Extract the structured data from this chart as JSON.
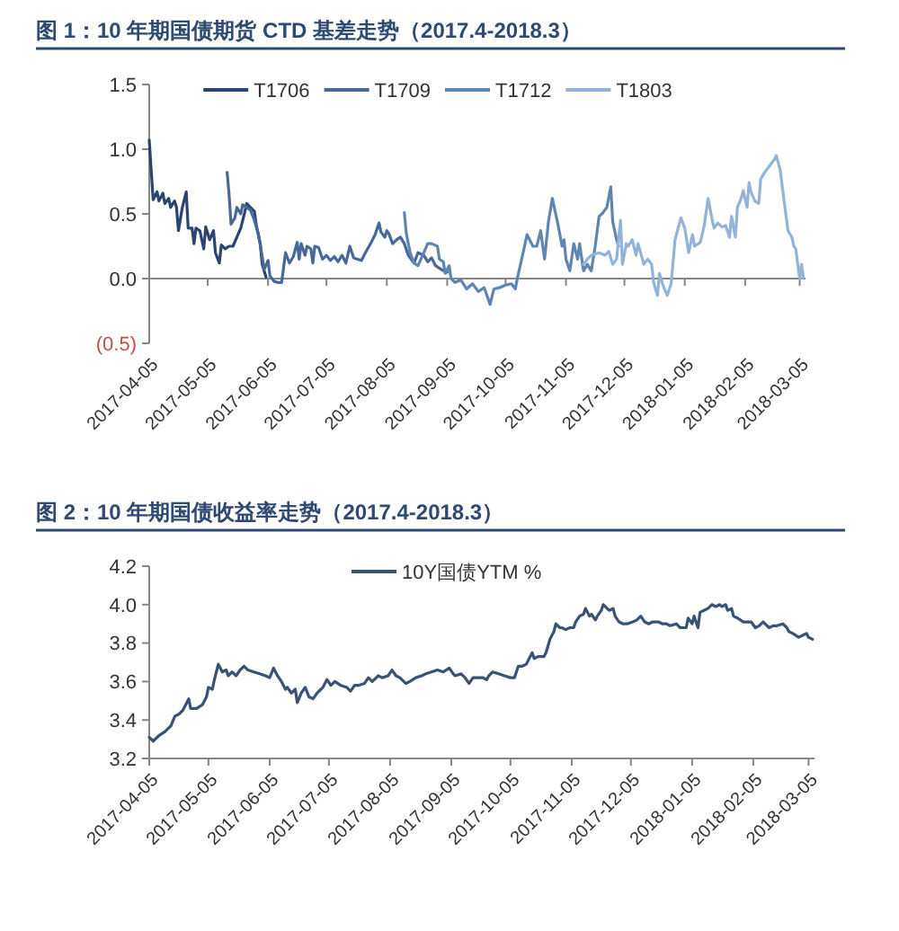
{
  "chart_data": [
    {
      "type": "line",
      "title": "图 1：10 年期国债期货 CTD 基差走势（2017.4-2018.3）",
      "legend": "top",
      "xlim": [
        "2017-04-05",
        "2018-03-08"
      ],
      "xticks": [
        "2017-04-05",
        "2017-05-05",
        "2017-06-05",
        "2017-07-05",
        "2017-08-05",
        "2017-09-05",
        "2017-10-05",
        "2017-11-05",
        "2017-12-05",
        "2018-01-05",
        "2018-02-05",
        "2018-03-05"
      ],
      "ylim": [
        -0.5,
        1.5
      ],
      "yticks": [
        {
          "value": -0.5,
          "label": "(0.5)"
        },
        {
          "value": 0,
          "label": "0.0"
        },
        0.5,
        {
          "value": 1,
          "label": "1.0"
        },
        1.5
      ],
      "series": [
        {
          "name": "T1706",
          "color": "#2b4570",
          "x": [
            "2017-04-05",
            "2017-04-07",
            "2017-04-09",
            "2017-04-10",
            "2017-04-12",
            "2017-04-13",
            "2017-04-15",
            "2017-04-16",
            "2017-04-18",
            "2017-04-19",
            "2017-04-20",
            "2017-04-22",
            "2017-04-24",
            "2017-04-25",
            "2017-04-27",
            "2017-04-28",
            "2017-04-29",
            "2017-05-01",
            "2017-05-03",
            "2017-05-04",
            "2017-05-06",
            "2017-05-08",
            "2017-05-09",
            "2017-05-11",
            "2017-05-12",
            "2017-05-14",
            "2017-05-16",
            "2017-05-18",
            "2017-05-20",
            "2017-05-22",
            "2017-05-24",
            "2017-05-25",
            "2017-05-27",
            "2017-05-29",
            "2017-05-30",
            "2017-06-01",
            "2017-06-02",
            "2017-06-04"
          ],
          "values": [
            1.07,
            0.61,
            0.67,
            0.6,
            0.66,
            0.58,
            0.62,
            0.55,
            0.6,
            0.55,
            0.37,
            0.55,
            0.67,
            0.39,
            0.39,
            0.27,
            0.39,
            0.37,
            0.23,
            0.4,
            0.3,
            0.37,
            0.2,
            0.12,
            0.26,
            0.23,
            0.25,
            0.25,
            0.32,
            0.39,
            0.51,
            0.58,
            0.55,
            0.52,
            0.41,
            0.27,
            0.11,
            0.01
          ]
        },
        {
          "name": "T1709",
          "color": "#46689a",
          "x": [
            "2017-05-15",
            "2017-05-16",
            "2017-05-17",
            "2017-05-19",
            "2017-05-20",
            "2017-05-22",
            "2017-05-23",
            "2017-05-25",
            "2017-05-27",
            "2017-05-29",
            "2017-05-31",
            "2017-06-02",
            "2017-06-03",
            "2017-06-05",
            "2017-06-06",
            "2017-06-08",
            "2017-06-10",
            "2017-06-12",
            "2017-06-14",
            "2017-06-16",
            "2017-06-18",
            "2017-06-20",
            "2017-06-21",
            "2017-06-22",
            "2017-06-24",
            "2017-06-25",
            "2017-06-27",
            "2017-06-28",
            "2017-06-29",
            "2017-07-01",
            "2017-07-03",
            "2017-07-05",
            "2017-07-07",
            "2017-07-09",
            "2017-07-11",
            "2017-07-13",
            "2017-07-15",
            "2017-07-17",
            "2017-07-19",
            "2017-07-21",
            "2017-07-23",
            "2017-07-25",
            "2017-07-28",
            "2017-07-30",
            "2017-08-01",
            "2017-08-02",
            "2017-08-04",
            "2017-08-05",
            "2017-08-06",
            "2017-08-08",
            "2017-08-10",
            "2017-08-12",
            "2017-08-14",
            "2017-08-16",
            "2017-08-19",
            "2017-08-21",
            "2017-08-24",
            "2017-08-26",
            "2017-08-28",
            "2017-08-30",
            "2017-09-02",
            "2017-09-05"
          ],
          "values": [
            0.82,
            0.65,
            0.42,
            0.47,
            0.55,
            0.5,
            0.57,
            0.55,
            0.53,
            0.45,
            0.35,
            0.17,
            0.07,
            0.14,
            0.02,
            -0.02,
            -0.03,
            -0.03,
            0.2,
            0.12,
            0.17,
            0.28,
            0.15,
            0.27,
            0.18,
            0.25,
            0.23,
            0.12,
            0.25,
            0.24,
            0.15,
            0.18,
            0.14,
            0.17,
            0.13,
            0.18,
            0.12,
            0.25,
            0.16,
            0.15,
            0.14,
            0.2,
            0.28,
            0.34,
            0.43,
            0.36,
            0.32,
            0.37,
            0.35,
            0.27,
            0.3,
            0.32,
            0.27,
            0.18,
            0.12,
            0.2,
            0.18,
            0.13,
            0.16,
            0.1,
            0.07,
            0.05
          ]
        },
        {
          "name": "T1712",
          "color": "#5f85b3",
          "x": [
            "2017-08-14",
            "2017-08-15",
            "2017-08-17",
            "2017-08-19",
            "2017-08-21",
            "2017-08-24",
            "2017-08-26",
            "2017-08-28",
            "2017-08-31",
            "2017-09-01",
            "2017-09-03",
            "2017-09-04",
            "2017-09-06",
            "2017-09-07",
            "2017-09-09",
            "2017-09-12",
            "2017-09-15",
            "2017-09-18",
            "2017-09-21",
            "2017-09-24",
            "2017-09-27",
            "2017-09-29",
            "2017-10-02",
            "2017-10-05",
            "2017-10-08",
            "2017-10-10",
            "2017-10-11",
            "2017-10-14",
            "2017-10-16",
            "2017-10-19",
            "2017-10-21",
            "2017-10-23",
            "2017-10-25",
            "2017-10-27",
            "2017-10-29",
            "2017-10-31",
            "2017-11-01",
            "2017-11-03",
            "2017-11-04",
            "2017-11-05",
            "2017-11-07",
            "2017-11-09",
            "2017-11-11",
            "2017-11-12",
            "2017-11-14",
            "2017-11-16",
            "2017-11-18",
            "2017-11-20",
            "2017-11-22",
            "2017-11-24",
            "2017-11-26",
            "2017-11-28",
            "2017-11-29",
            "2017-12-01",
            "2017-12-02"
          ],
          "values": [
            0.51,
            0.35,
            0.2,
            0.12,
            0.1,
            0.2,
            0.27,
            0.27,
            0.25,
            0.15,
            0.13,
            0.04,
            0.1,
            0,
            -0.03,
            -0.01,
            -0.08,
            -0.04,
            -0.1,
            -0.07,
            -0.2,
            -0.08,
            -0.07,
            -0.05,
            -0.04,
            -0.08,
            0,
            0.2,
            0.34,
            0.25,
            0.25,
            0.37,
            0.15,
            0.44,
            0.62,
            0.48,
            0.41,
            0.25,
            0.3,
            0.15,
            0.06,
            0.27,
            0.15,
            0.27,
            0.06,
            0.11,
            0.06,
            0.25,
            0.48,
            0.51,
            0.55,
            0.71,
            0.44,
            0.3,
            0.25
          ]
        },
        {
          "name": "T1803",
          "color": "#93b4d8",
          "x": [
            "2017-11-14",
            "2017-11-16",
            "2017-11-18",
            "2017-11-22",
            "2017-11-25",
            "2017-11-27",
            "2017-11-29",
            "2017-12-01",
            "2017-12-03",
            "2017-12-04",
            "2017-12-06",
            "2017-12-07",
            "2017-12-09",
            "2017-12-11",
            "2017-12-12",
            "2017-12-15",
            "2017-12-17",
            "2017-12-19",
            "2017-12-20",
            "2017-12-22",
            "2017-12-23",
            "2017-12-25",
            "2017-12-27",
            "2017-12-29",
            "2017-12-31",
            "2018-01-03",
            "2018-01-05",
            "2018-01-07",
            "2018-01-09",
            "2018-01-10",
            "2018-01-13",
            "2018-01-15",
            "2018-01-17",
            "2018-01-19",
            "2018-01-20",
            "2018-01-22",
            "2018-01-24",
            "2018-01-26",
            "2018-01-28",
            "2018-01-29",
            "2018-01-31",
            "2018-02-01",
            "2018-02-03",
            "2018-02-04",
            "2018-02-06",
            "2018-02-07",
            "2018-02-08",
            "2018-02-10",
            "2018-02-12",
            "2018-02-13",
            "2018-02-15",
            "2018-02-18",
            "2018-02-20",
            "2018-02-21",
            "2018-02-23",
            "2018-02-25",
            "2018-02-27",
            "2018-03-01",
            "2018-03-02",
            "2018-03-03",
            "2018-03-05",
            "2018-03-06",
            "2018-03-07"
          ],
          "values": [
            0.11,
            0.15,
            0.18,
            0.2,
            0.18,
            0.21,
            0.11,
            0.15,
            0.45,
            0.11,
            0.27,
            0.25,
            0.3,
            0.18,
            0.27,
            0.11,
            0.15,
            0.11,
            -0.03,
            -0.13,
            0.04,
            -0.06,
            -0.13,
            -0.04,
            0.3,
            0.47,
            0.39,
            0.2,
            0.34,
            0.25,
            0.28,
            0.41,
            0.62,
            0.46,
            0.39,
            0.43,
            0.4,
            0.41,
            0.32,
            0.48,
            0.32,
            0.55,
            0.62,
            0.68,
            0.55,
            0.74,
            0.67,
            0.6,
            0.58,
            0.77,
            0.82,
            0.88,
            0.92,
            0.95,
            0.84,
            0.6,
            0.37,
            0.32,
            0.25,
            0.23,
            0,
            0.11,
            0
          ]
        }
      ]
    },
    {
      "type": "line",
      "title": "图 2：10 年期国债收益率走势（2017.4-2018.3）",
      "legend": "top",
      "xlim": [
        "2017-04-05",
        "2018-03-08"
      ],
      "xticks": [
        "2017-04-05",
        "2017-05-05",
        "2017-06-05",
        "2017-07-05",
        "2017-08-05",
        "2017-09-05",
        "2017-10-05",
        "2017-11-05",
        "2017-12-05",
        "2018-01-05",
        "2018-02-05",
        "2018-03-05"
      ],
      "ylim": [
        3.2,
        4.2
      ],
      "yticks": [
        3.2,
        3.4,
        3.6,
        3.8,
        {
          "value": 4,
          "label": "4.0"
        },
        4.2
      ],
      "series": [
        {
          "name": "10Y国债YTM %",
          "color": "#3a5276",
          "x": [
            "2017-04-05",
            "2017-04-07",
            "2017-04-10",
            "2017-04-13",
            "2017-04-16",
            "2017-04-18",
            "2017-04-20",
            "2017-04-22",
            "2017-04-23",
            "2017-04-25",
            "2017-04-26",
            "2017-04-29",
            "2017-05-02",
            "2017-05-04",
            "2017-05-05",
            "2017-05-07",
            "2017-05-08",
            "2017-05-10",
            "2017-05-12",
            "2017-05-14",
            "2017-05-15",
            "2017-05-17",
            "2017-05-19",
            "2017-05-21",
            "2017-05-23",
            "2017-05-25",
            "2017-05-28",
            "2017-05-31",
            "2017-06-03",
            "2017-06-05",
            "2017-06-07",
            "2017-06-09",
            "2017-06-11",
            "2017-06-13",
            "2017-06-14",
            "2017-06-16",
            "2017-06-18",
            "2017-06-19",
            "2017-06-21",
            "2017-06-23",
            "2017-06-25",
            "2017-06-27",
            "2017-06-29",
            "2017-07-02",
            "2017-07-04",
            "2017-07-06",
            "2017-07-08",
            "2017-07-11",
            "2017-07-14",
            "2017-07-16",
            "2017-07-18",
            "2017-07-20",
            "2017-07-23",
            "2017-07-25",
            "2017-07-27",
            "2017-07-30",
            "2017-08-01",
            "2017-08-04",
            "2017-08-06",
            "2017-08-08",
            "2017-08-10",
            "2017-08-13",
            "2017-08-15",
            "2017-08-18",
            "2017-08-21",
            "2017-08-23",
            "2017-08-26",
            "2017-08-29",
            "2017-09-01",
            "2017-09-04",
            "2017-09-06",
            "2017-09-07",
            "2017-09-10",
            "2017-09-12",
            "2017-09-14",
            "2017-09-16",
            "2017-09-18",
            "2017-09-21",
            "2017-09-23",
            "2017-09-24",
            "2017-09-26",
            "2017-09-29",
            "2017-10-02",
            "2017-10-05",
            "2017-10-07",
            "2017-10-09",
            "2017-10-11",
            "2017-10-13",
            "2017-10-15",
            "2017-10-16",
            "2017-10-17",
            "2017-10-19",
            "2017-10-22",
            "2017-10-23",
            "2017-10-25",
            "2017-10-27",
            "2017-10-28",
            "2017-10-30",
            "2017-10-31",
            "2017-11-02",
            "2017-11-04",
            "2017-11-06",
            "2017-11-07",
            "2017-11-09",
            "2017-11-11",
            "2017-11-12",
            "2017-11-14",
            "2017-11-15",
            "2017-11-17",
            "2017-11-18",
            "2017-11-20",
            "2017-11-21",
            "2017-11-23",
            "2017-11-24",
            "2017-11-26",
            "2017-11-27",
            "2017-11-29",
            "2017-12-01",
            "2017-12-03",
            "2017-12-06",
            "2017-12-08",
            "2017-12-10",
            "2017-12-12",
            "2017-12-14",
            "2017-12-16",
            "2017-12-19",
            "2017-12-21",
            "2017-12-23",
            "2017-12-25",
            "2017-12-28",
            "2017-12-30",
            "2018-01-02",
            "2018-01-03",
            "2018-01-05",
            "2018-01-06",
            "2018-01-08",
            "2018-01-09",
            "2018-01-11",
            "2018-01-13",
            "2018-01-15",
            "2018-01-17",
            "2018-01-19",
            "2018-01-20",
            "2018-01-22",
            "2018-01-23",
            "2018-01-25",
            "2018-01-26",
            "2018-01-28",
            "2018-01-31",
            "2018-02-02",
            "2018-02-04",
            "2018-02-06",
            "2018-02-08",
            "2018-02-10",
            "2018-02-13",
            "2018-02-15",
            "2018-02-17",
            "2018-02-20",
            "2018-02-22",
            "2018-02-23",
            "2018-02-25",
            "2018-02-28",
            "2018-03-02",
            "2018-03-04",
            "2018-03-05",
            "2018-03-07"
          ],
          "values": [
            3.31,
            3.29,
            3.32,
            3.34,
            3.37,
            3.42,
            3.43,
            3.45,
            3.47,
            3.51,
            3.46,
            3.46,
            3.48,
            3.52,
            3.57,
            3.56,
            3.61,
            3.69,
            3.65,
            3.66,
            3.63,
            3.65,
            3.63,
            3.66,
            3.68,
            3.66,
            3.65,
            3.64,
            3.63,
            3.62,
            3.67,
            3.63,
            3.6,
            3.56,
            3.57,
            3.54,
            3.56,
            3.49,
            3.54,
            3.57,
            3.52,
            3.51,
            3.54,
            3.57,
            3.61,
            3.58,
            3.6,
            3.58,
            3.57,
            3.55,
            3.58,
            3.58,
            3.59,
            3.62,
            3.6,
            3.63,
            3.62,
            3.63,
            3.66,
            3.63,
            3.62,
            3.59,
            3.6,
            3.62,
            3.63,
            3.64,
            3.65,
            3.66,
            3.65,
            3.67,
            3.64,
            3.63,
            3.64,
            3.62,
            3.59,
            3.62,
            3.62,
            3.62,
            3.61,
            3.63,
            3.65,
            3.64,
            3.63,
            3.62,
            3.62,
            3.68,
            3.68,
            3.69,
            3.73,
            3.75,
            3.72,
            3.73,
            3.73,
            3.75,
            3.82,
            3.86,
            3.9,
            3.88,
            3.88,
            3.87,
            3.88,
            3.88,
            3.91,
            3.94,
            3.95,
            3.98,
            3.94,
            3.95,
            3.92,
            3.94,
            3.97,
            4.0,
            3.98,
            3.97,
            3.98,
            3.94,
            3.91,
            3.9,
            3.9,
            3.91,
            3.92,
            3.94,
            3.91,
            3.9,
            3.91,
            3.91,
            3.9,
            3.9,
            3.89,
            3.9,
            3.88,
            3.88,
            3.93,
            3.9,
            3.94,
            3.88,
            3.96,
            3.97,
            3.98,
            4.0,
            3.99,
            4.0,
            3.99,
            4.0,
            3.97,
            3.98,
            3.94,
            3.93,
            3.91,
            3.91,
            3.91,
            3.88,
            3.89,
            3.91,
            3.88,
            3.89,
            3.89,
            3.9,
            3.88,
            3.86,
            3.85,
            3.83,
            3.84,
            3.85,
            3.83,
            3.82
          ]
        }
      ]
    }
  ]
}
